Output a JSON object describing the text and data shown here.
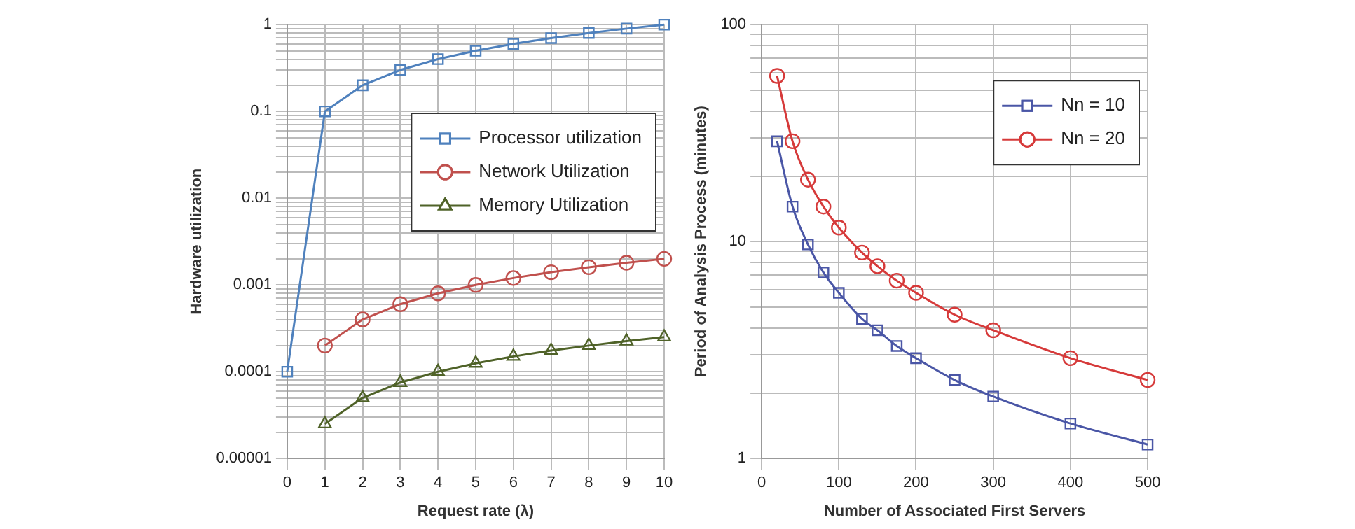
{
  "chart_data": [
    {
      "type": "line",
      "x": [
        0,
        1,
        2,
        3,
        4,
        5,
        6,
        7,
        8,
        9,
        10
      ],
      "xlabel": "Request rate (λ)",
      "ylabel": "Hardware utilization",
      "log": "y",
      "grid": true,
      "legend": "right",
      "line_style": "solid",
      "xlim": [
        0,
        10
      ],
      "xticks": [
        0,
        1,
        2,
        3,
        4,
        5,
        6,
        7,
        8,
        9,
        10
      ],
      "ylim": [
        1e-05,
        1
      ],
      "yticks": [
        {
          "value": 1e-05,
          "label": "0.00001"
        },
        {
          "value": 2e-05,
          "label": null
        },
        {
          "value": 3e-05,
          "label": null
        },
        {
          "value": 4e-05,
          "label": null
        },
        {
          "value": 5e-05,
          "label": null
        },
        {
          "value": 6e-05,
          "label": null
        },
        {
          "value": 7e-05,
          "label": null
        },
        {
          "value": 8e-05,
          "label": null
        },
        {
          "value": 9e-05,
          "label": null
        },
        0.0001,
        {
          "value": 0.0002,
          "label": null
        },
        {
          "value": 0.0003,
          "label": null
        },
        {
          "value": 0.0004,
          "label": null
        },
        {
          "value": 0.0005,
          "label": null
        },
        {
          "value": 0.0006,
          "label": null
        },
        {
          "value": 0.0007,
          "label": null
        },
        {
          "value": 0.0008,
          "label": null
        },
        {
          "value": 0.0009,
          "label": null
        },
        0.001,
        {
          "value": 0.002,
          "label": null
        },
        {
          "value": 0.003,
          "label": null
        },
        {
          "value": 0.004,
          "label": null
        },
        {
          "value": 0.005,
          "label": null
        },
        {
          "value": 0.006,
          "label": null
        },
        {
          "value": 0.007,
          "label": null
        },
        {
          "value": 0.008,
          "label": null
        },
        {
          "value": 0.009,
          "label": null
        },
        0.01,
        {
          "value": 0.02,
          "label": null
        },
        {
          "value": 0.03,
          "label": null
        },
        {
          "value": 0.04,
          "label": null
        },
        {
          "value": 0.05,
          "label": null
        },
        {
          "value": 0.06,
          "label": null
        },
        {
          "value": 0.07,
          "label": null
        },
        {
          "value": 0.08,
          "label": null
        },
        {
          "value": 0.09,
          "label": null
        },
        0.1,
        {
          "value": 0.2,
          "label": null
        },
        {
          "value": 0.3,
          "label": null
        },
        {
          "value": 0.4,
          "label": null
        },
        {
          "value": 0.5,
          "label": null
        },
        {
          "value": 0.6,
          "label": null
        },
        {
          "value": 0.7,
          "label": null
        },
        {
          "value": 0.8,
          "label": null
        },
        {
          "value": 0.9,
          "label": null
        },
        1
      ],
      "series": [
        {
          "name": "Processor utilization",
          "color": "#4f81bd",
          "marker": "square",
          "values": [
            0.0001,
            0.1,
            0.2,
            0.3,
            0.4,
            0.5,
            0.6,
            0.7,
            0.8,
            0.9,
            1
          ]
        },
        {
          "name": "Network Utilization",
          "color": "#c0504d",
          "marker": "circle",
          "values": [
            null,
            0.0002,
            0.0004,
            0.0006,
            0.0008,
            0.001,
            0.0012,
            0.0014,
            0.0016,
            0.0018,
            0.002
          ]
        },
        {
          "name": "Memory Utilization",
          "color": "#4f6228",
          "marker": "triangle",
          "values": [
            null,
            2.5e-05,
            5e-05,
            7.5e-05,
            0.0001,
            0.000125,
            0.00015,
            0.000175,
            0.0002,
            0.000225,
            0.00025
          ]
        }
      ]
    },
    {
      "type": "line",
      "x": [
        20,
        40,
        60,
        80,
        100,
        130,
        150,
        175,
        200,
        250,
        300,
        400,
        500
      ],
      "xlabel": "Number of Associated First Servers",
      "ylabel": "Period of Analysis Process (minutes)",
      "log": "y",
      "grid": true,
      "legend": "top right",
      "line_style": "solid",
      "xlim": [
        0,
        500
      ],
      "xticks": [
        0,
        100,
        200,
        300,
        400,
        500
      ],
      "ylim": [
        1,
        100
      ],
      "yticks": [
        1,
        {
          "value": 2,
          "label": null
        },
        {
          "value": 3,
          "label": null
        },
        {
          "value": 4,
          "label": null
        },
        {
          "value": 5,
          "label": null
        },
        {
          "value": 6,
          "label": null
        },
        {
          "value": 7,
          "label": null
        },
        {
          "value": 8,
          "label": null
        },
        {
          "value": 9,
          "label": null
        },
        10,
        {
          "value": 20,
          "label": null
        },
        {
          "value": 30,
          "label": null
        },
        {
          "value": 40,
          "label": null
        },
        {
          "value": 50,
          "label": null
        },
        {
          "value": 60,
          "label": null
        },
        {
          "value": 70,
          "label": null
        },
        {
          "value": 80,
          "label": null
        },
        {
          "value": 90,
          "label": null
        },
        100
      ],
      "series": [
        {
          "name": "Nn = 10",
          "color": "#4a56a6",
          "marker": "square",
          "values": [
            29,
            14.5,
            9.7,
            7.2,
            5.8,
            4.4,
            3.9,
            3.3,
            2.9,
            2.3,
            1.93,
            1.45,
            1.16
          ]
        },
        {
          "name": "Nn = 20",
          "color": "#d63a3a",
          "marker": "circle",
          "values": [
            58,
            29,
            19.3,
            14.5,
            11.6,
            8.9,
            7.7,
            6.6,
            5.8,
            4.6,
            3.9,
            2.9,
            2.3
          ]
        }
      ]
    }
  ]
}
